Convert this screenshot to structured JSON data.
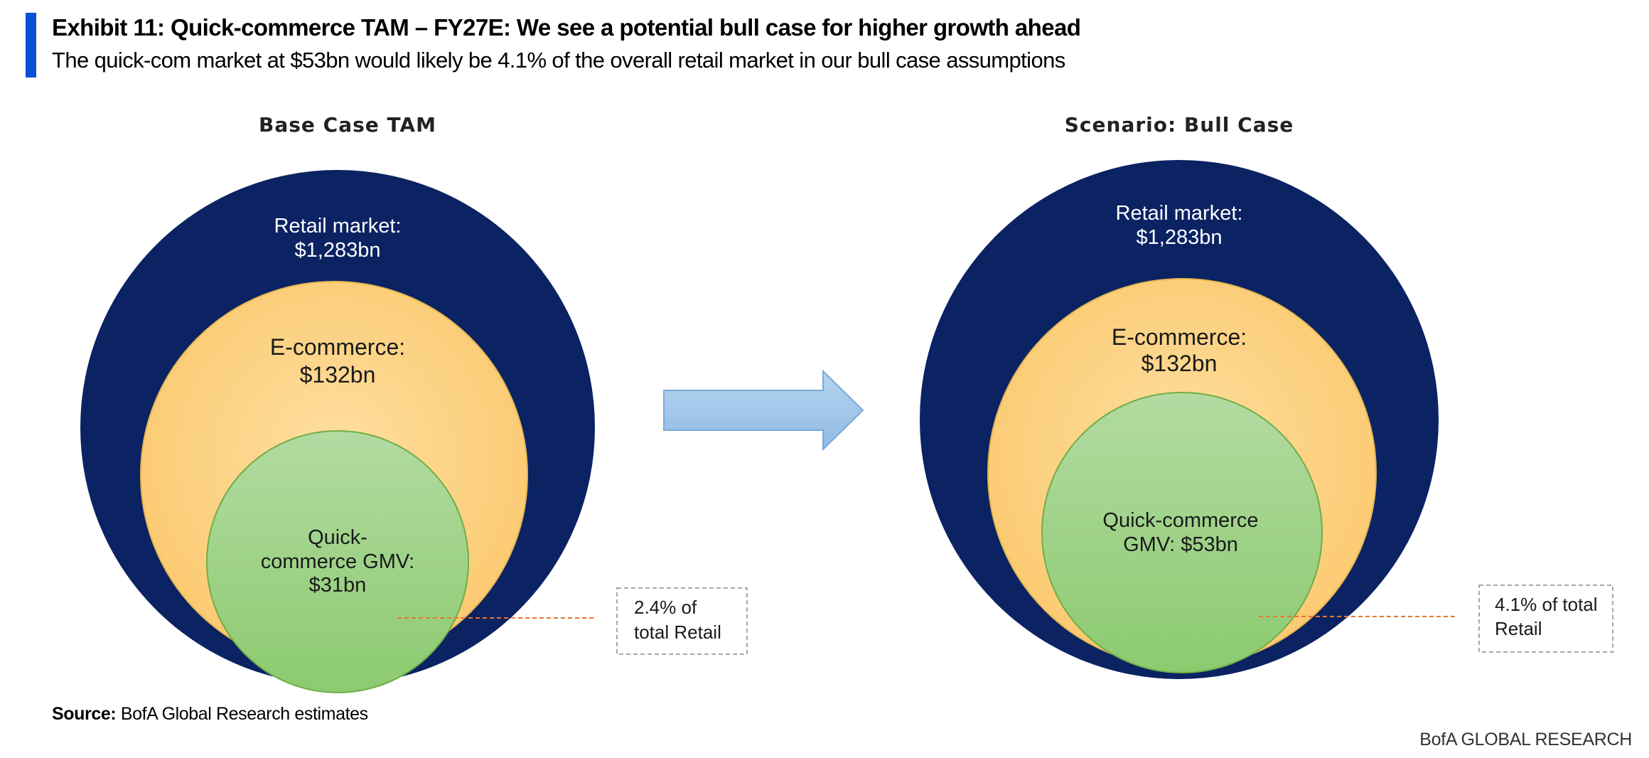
{
  "header": {
    "title": "Exhibit 11: Quick-commerce TAM – FY27E: We see a potential bull case for higher growth ahead",
    "subtitle": "The quick-com market at $53bn would likely be 4.1% of the overall retail market in our bull case assumptions"
  },
  "colors": {
    "accent": "#0a4fd6",
    "retail": "#0b2263",
    "ecommerce": "#fcd689",
    "quick_commerce": "#9fd085",
    "arrow": "#9cc3e6",
    "leader_line": "#e8772e"
  },
  "panels": [
    {
      "heading": "Base Case TAM",
      "retail_label": "Retail market:",
      "retail_value": "$1,283bn",
      "ecom_label": "E-commerce:",
      "ecom_value": "$132bn",
      "qc_line1": "Quick-",
      "qc_line2": "commerce GMV:",
      "qc_line3": "$31bn",
      "callout_line1": "2.4% of",
      "callout_line2": "total Retail"
    },
    {
      "heading": "Scenario: Bull Case",
      "retail_label": "Retail market:",
      "retail_value": "$1,283bn",
      "ecom_label": "E-commerce:",
      "ecom_value": "$132bn",
      "qc_line1": "Quick-commerce",
      "qc_line2": "GMV: $53bn",
      "callout_line1": "4.1% of total",
      "callout_line2": "Retail"
    }
  ],
  "footer": {
    "source_label": "Source:",
    "source_text": "BofA Global Research estimates",
    "brand": "BofA GLOBAL RESEARCH"
  }
}
